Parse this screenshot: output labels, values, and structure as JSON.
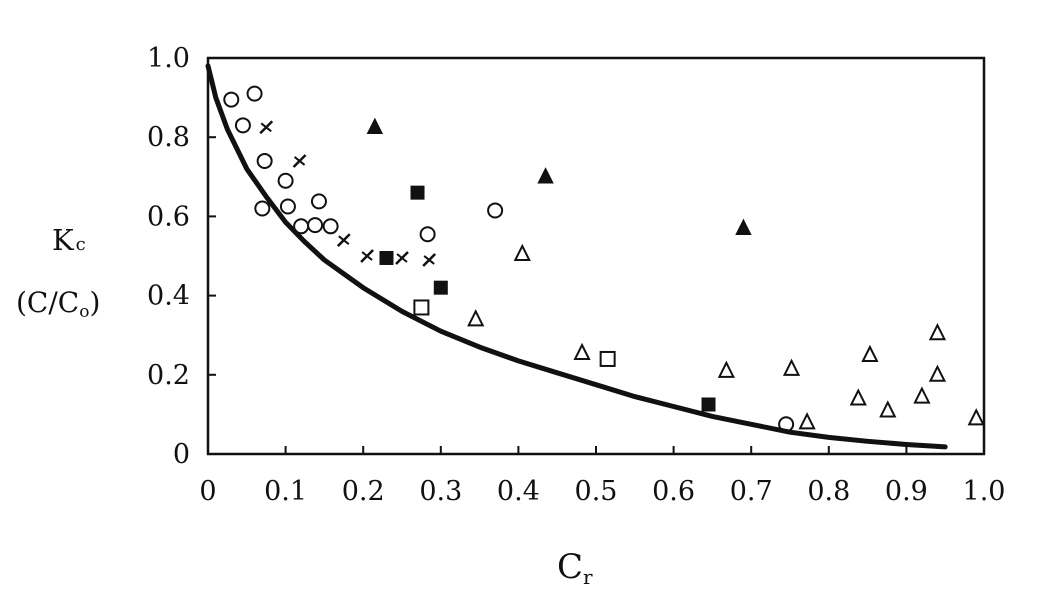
{
  "chart_data": {
    "type": "scatter",
    "title": "",
    "xlabel": "C",
    "xlabel_sub": "r",
    "ylabel_line1": "K",
    "ylabel_line1_sub": "c",
    "ylabel_line2_pre": "(C/C",
    "ylabel_line2_sub": "o",
    "ylabel_line2_post": ")",
    "xlim": [
      0,
      1.0
    ],
    "ylim": [
      0,
      1.0
    ],
    "grid": false,
    "legend": "none",
    "x_tick_labels": [
      "0",
      "0.1",
      "0.2",
      "0.3",
      "0.4",
      "0.5",
      "0.6",
      "0.7",
      "0.8",
      "0.9",
      "1.0"
    ],
    "y_tick_labels": [
      "0",
      "0.2",
      "0.4",
      "0.6",
      "0.8",
      "1.0"
    ],
    "curve": {
      "points": [
        [
          0.0,
          0.98
        ],
        [
          0.01,
          0.9
        ],
        [
          0.025,
          0.82
        ],
        [
          0.05,
          0.72
        ],
        [
          0.075,
          0.65
        ],
        [
          0.1,
          0.585
        ],
        [
          0.125,
          0.535
        ],
        [
          0.15,
          0.49
        ],
        [
          0.2,
          0.42
        ],
        [
          0.25,
          0.36
        ],
        [
          0.3,
          0.31
        ],
        [
          0.35,
          0.27
        ],
        [
          0.4,
          0.235
        ],
        [
          0.45,
          0.205
        ],
        [
          0.5,
          0.175
        ],
        [
          0.55,
          0.145
        ],
        [
          0.6,
          0.12
        ],
        [
          0.65,
          0.095
        ],
        [
          0.7,
          0.075
        ],
        [
          0.75,
          0.055
        ],
        [
          0.8,
          0.042
        ],
        [
          0.85,
          0.032
        ],
        [
          0.9,
          0.024
        ],
        [
          0.95,
          0.018
        ]
      ]
    },
    "series": [
      {
        "marker": "open-circle",
        "points": [
          [
            0.03,
            0.895
          ],
          [
            0.045,
            0.83
          ],
          [
            0.06,
            0.91
          ],
          [
            0.07,
            0.62
          ],
          [
            0.073,
            0.74
          ],
          [
            0.1,
            0.69
          ],
          [
            0.103,
            0.625
          ],
          [
            0.12,
            0.575
          ],
          [
            0.138,
            0.578
          ],
          [
            0.143,
            0.638
          ],
          [
            0.158,
            0.575
          ],
          [
            0.283,
            0.555
          ],
          [
            0.37,
            0.615
          ],
          [
            0.745,
            0.075
          ]
        ]
      },
      {
        "marker": "cross",
        "points": [
          [
            0.075,
            0.825
          ],
          [
            0.118,
            0.74
          ],
          [
            0.175,
            0.54
          ],
          [
            0.205,
            0.5
          ],
          [
            0.25,
            0.495
          ],
          [
            0.285,
            0.49
          ]
        ]
      },
      {
        "marker": "filled-triangle",
        "points": [
          [
            0.215,
            0.825
          ],
          [
            0.435,
            0.7
          ],
          [
            0.69,
            0.57
          ]
        ]
      },
      {
        "marker": "filled-square",
        "points": [
          [
            0.23,
            0.495
          ],
          [
            0.27,
            0.66
          ],
          [
            0.3,
            0.42
          ],
          [
            0.645,
            0.125
          ]
        ]
      },
      {
        "marker": "open-square",
        "points": [
          [
            0.275,
            0.37
          ],
          [
            0.515,
            0.24
          ]
        ]
      },
      {
        "marker": "open-triangle",
        "points": [
          [
            0.345,
            0.34
          ],
          [
            0.405,
            0.505
          ],
          [
            0.482,
            0.255
          ],
          [
            0.668,
            0.21
          ],
          [
            0.752,
            0.215
          ],
          [
            0.772,
            0.08
          ],
          [
            0.838,
            0.14
          ],
          [
            0.853,
            0.25
          ],
          [
            0.876,
            0.11
          ],
          [
            0.92,
            0.145
          ],
          [
            0.94,
            0.305
          ],
          [
            0.94,
            0.2
          ],
          [
            0.99,
            0.09
          ]
        ]
      }
    ]
  }
}
